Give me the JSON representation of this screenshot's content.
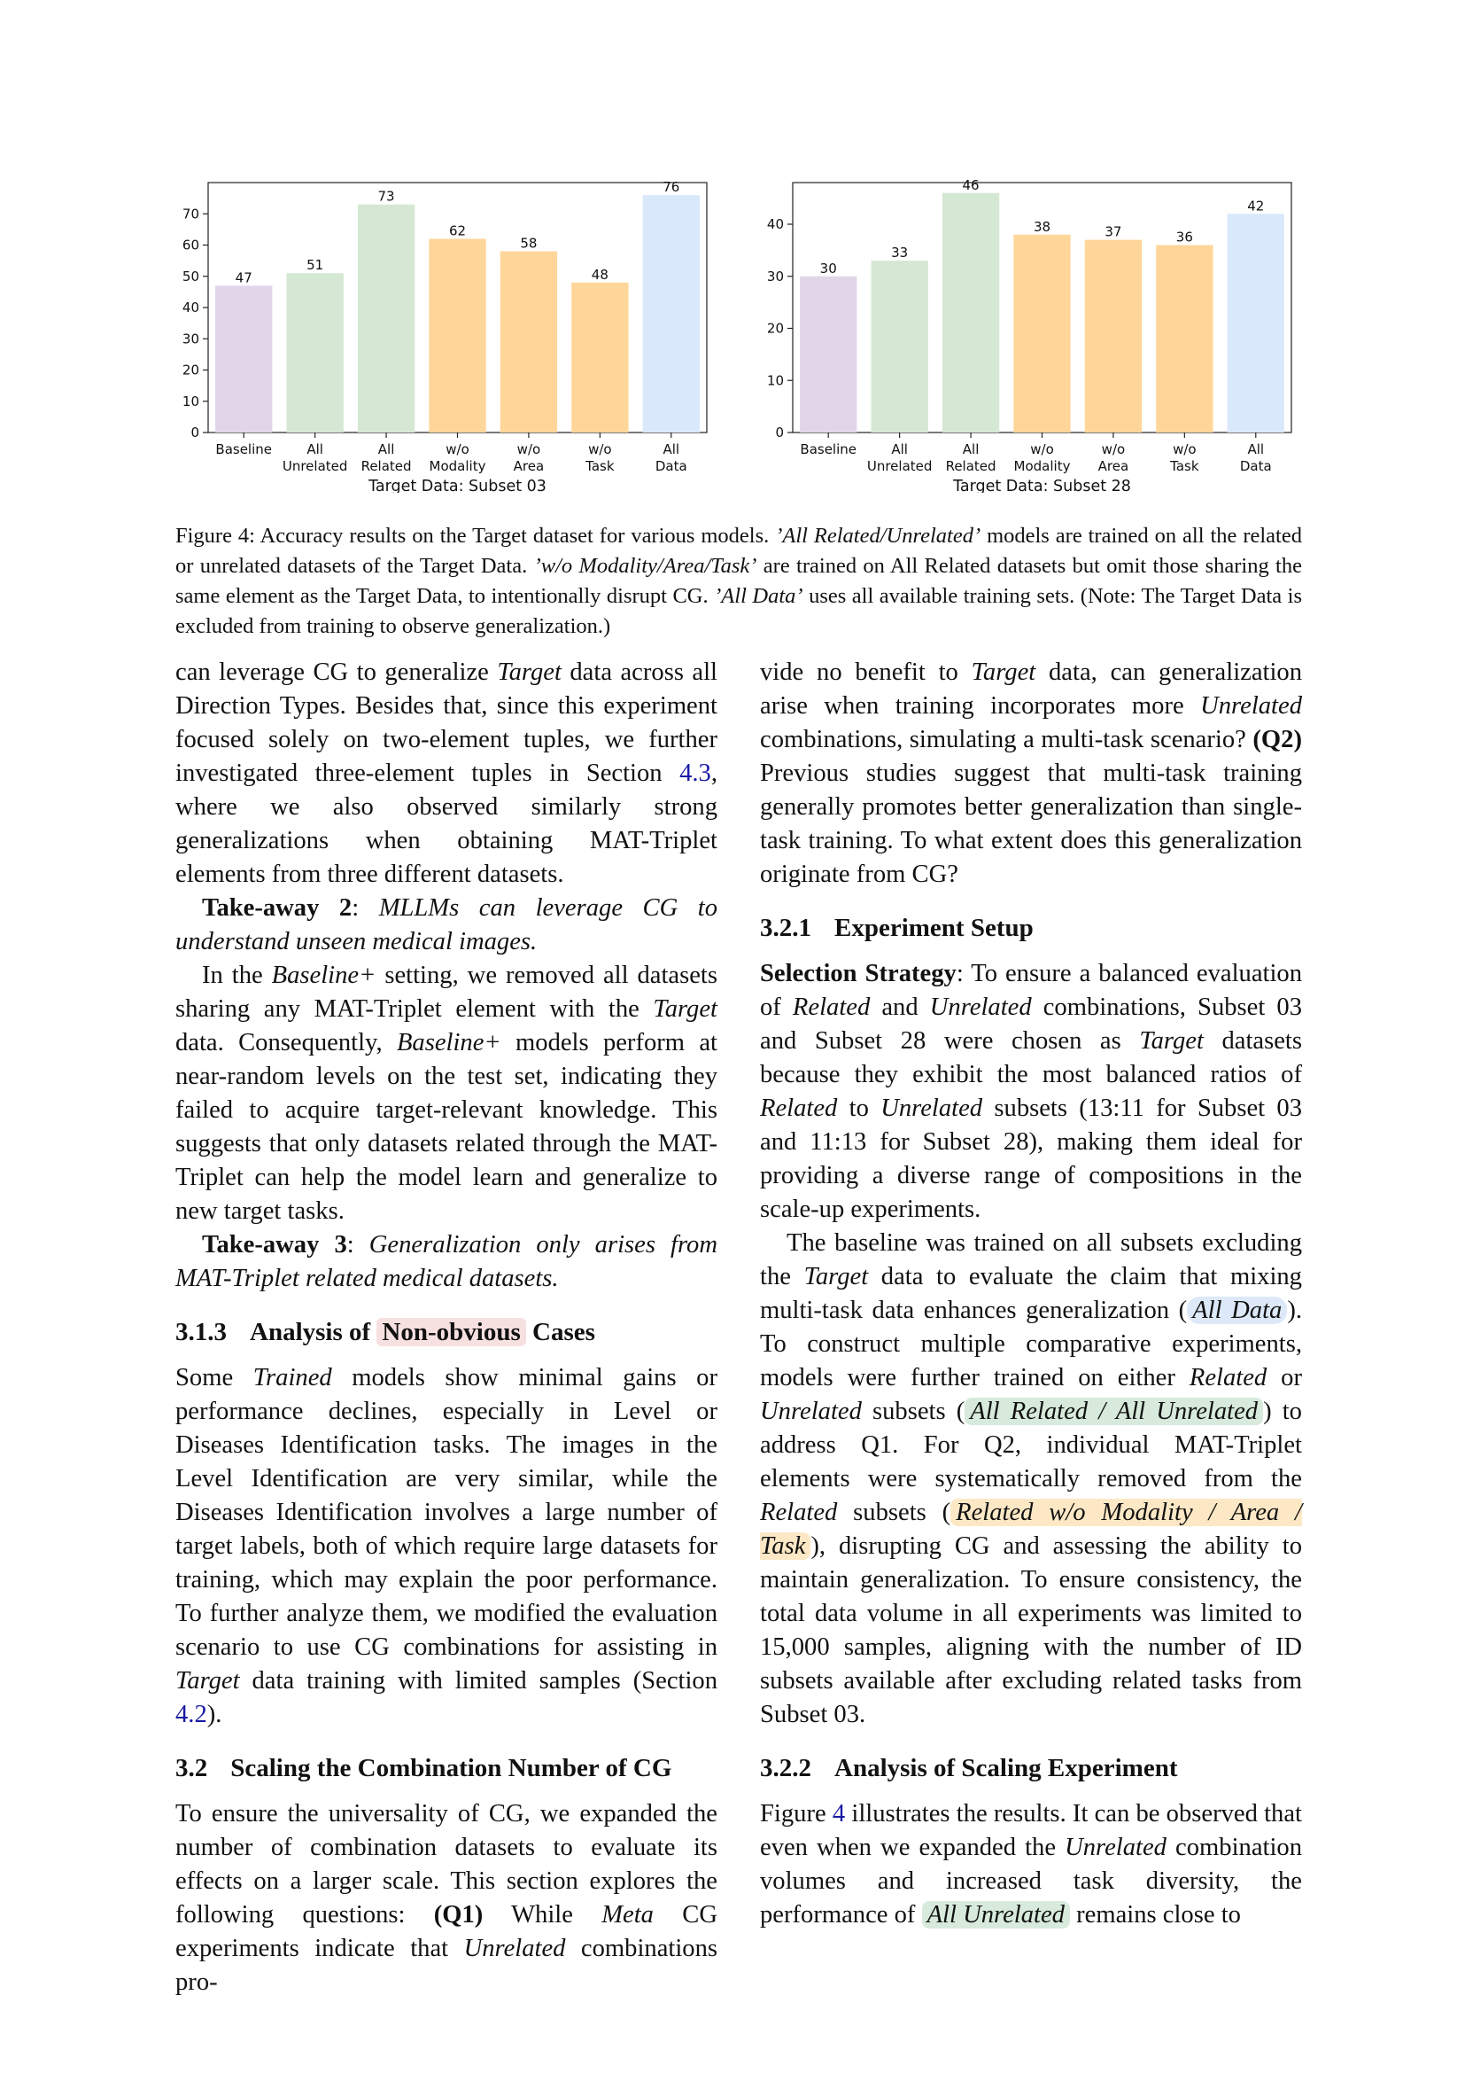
{
  "chart_data": [
    {
      "type": "bar",
      "categories": [
        [
          "Baseline"
        ],
        [
          "All",
          "Unrelated"
        ],
        [
          "All",
          "Related"
        ],
        [
          "w/o",
          "Modality"
        ],
        [
          "w/o",
          "Area"
        ],
        [
          "w/o",
          "Task"
        ],
        [
          "All",
          "Data"
        ]
      ],
      "values": [
        47,
        51,
        73,
        62,
        58,
        48,
        76
      ],
      "colors": [
        "#e1d5ea",
        "#d5e8d4",
        "#d5e8d4",
        "#ffd699",
        "#ffd699",
        "#ffd699",
        "#dae8fc"
      ],
      "xlabel": "Target Data: Subset 03",
      "ylim": [
        0,
        80
      ],
      "yticks": [
        0,
        10,
        20,
        30,
        40,
        50,
        60,
        70
      ]
    },
    {
      "type": "bar",
      "categories": [
        [
          "Baseline"
        ],
        [
          "All",
          "Unrelated"
        ],
        [
          "All",
          "Related"
        ],
        [
          "w/o",
          "Modality"
        ],
        [
          "w/o",
          "Area"
        ],
        [
          "w/o",
          "Task"
        ],
        [
          "All",
          "Data"
        ]
      ],
      "values": [
        30,
        33,
        46,
        38,
        37,
        36,
        42
      ],
      "colors": [
        "#e1d5ea",
        "#d5e8d4",
        "#d5e8d4",
        "#ffd699",
        "#ffd699",
        "#ffd699",
        "#dae8fc"
      ],
      "xlabel": "Target Data: Subset 28",
      "ylim": [
        0,
        48
      ],
      "yticks": [
        0,
        10,
        20,
        30,
        40
      ]
    }
  ],
  "caption": {
    "p1": "Figure 4: Accuracy results on the Target dataset for various models. ",
    "i1": "’All Related/Unrelated’",
    "p2": " models are trained on all the related or unrelated datasets of the Target Data. ",
    "i2": "’w/o Modality/Area/Task’",
    "p3": " are trained on All Related datasets but omit those sharing the same element as the Target Data, to intentionally disrupt CG. ",
    "i3": "’All Data’",
    "p4": " uses all available training sets. (Note: The Target Data is excluded from training to observe generalization.)"
  },
  "left": {
    "p1": {
      "a": "can leverage CG to generalize ",
      "b": "Target",
      "c": " data across all Direction Types. Besides that, since this experiment focused solely on two-element tuples, we further investigated three-element tuples in Section ",
      "link": "4.3",
      "d": ", where we also observed similarly strong generalizations when obtaining MAT-Triplet elements from three different datasets."
    },
    "t2": {
      "label": "Take-away 2",
      "colon": ": ",
      "text": "MLLMs can leverage CG to understand unseen medical images."
    },
    "p2": {
      "a": "In the ",
      "b": "Baseline+",
      "c": " setting, we removed all datasets sharing any MAT-Triplet element with the ",
      "d": "Target",
      "e": " data. Consequently, ",
      "f": "Baseline+",
      "g": " models perform at near-random levels on the test set, indicating they failed to acquire target-relevant knowledge. This suggests that only datasets related through the MAT-Triplet can help the model learn and generalize to new target tasks."
    },
    "t3": {
      "label": "Take-away 3",
      "colon": ": ",
      "text": "Generalization only arises from MAT-Triplet related medical datasets."
    },
    "h313": {
      "num": "3.1.3",
      "pre": "Analysis of ",
      "hl": "Non-obvious",
      "post": " Cases"
    },
    "p3": {
      "a": "Some ",
      "b": "Trained",
      "c": " models show minimal gains or performance declines, especially in Level or Diseases Identification tasks. The images in the Level Identification are very similar, while the Diseases Identification involves a large number of target labels, both of which require large datasets for training, which may explain the poor performance. To further analyze them, we modified the evaluation scenario to use CG combinations for assisting in ",
      "d": "Target",
      "e": " data training with limited samples (Section ",
      "link": "4.2",
      "f": ")."
    },
    "h32": {
      "num": "3.2",
      "text": "Scaling the Combination Number of CG"
    },
    "p4": {
      "a": "To ensure the universality of CG, we expanded the number of combination datasets to evaluate its effects on a larger scale. This section explores the following questions: ",
      "q1": "(Q1)",
      "b": " While ",
      "c": "Meta",
      "d": " CG experiments indicate that ",
      "e": "Unrelated",
      "f": " combinations pro-"
    }
  },
  "right": {
    "p1": {
      "a": "vide no benefit to ",
      "b": "Target",
      "c": " data, can generalization arise when training incorporates more ",
      "d": "Unrelated",
      "e": " combinations, simulating a multi-task scenario? ",
      "q2": "(Q2)",
      "f": " Previous studies suggest that multi-task training generally promotes better generalization than single-task training. To what extent does this generalization originate from CG?"
    },
    "h321": {
      "num": "3.2.1",
      "text": "Experiment Setup"
    },
    "p2": {
      "label": "Selection Strategy",
      "a": ": To ensure a balanced evaluation of ",
      "b": "Related",
      "c": " and ",
      "d": "Unrelated",
      "e": " combinations, Subset 03 and Subset 28 were chosen as ",
      "f": "Target",
      "g": " datasets because they exhibit the most balanced ratios of ",
      "h": "Related",
      "i": " to ",
      "j": "Unrelated",
      "k": " subsets (13:11 for Subset 03 and 11:13 for Subset 28), making them ideal for providing a diverse range of compositions in the scale-up experiments."
    },
    "p3": {
      "a": "The baseline was trained on all subsets excluding the ",
      "b": "Target",
      "c": " data to evaluate the claim that mixing multi-task data enhances generalization (",
      "hl1": "All Data",
      "d": "). To construct multiple comparative experiments, models were further trained on either ",
      "e": "Related",
      "f": " or ",
      "g": "Unrelated",
      "h": " subsets (",
      "hl2": "All Related / All Unrelated",
      "i": ") to address Q1. For Q2, individual MAT-Triplet elements were systematically removed from the ",
      "j": "Related",
      "k": " subsets (",
      "hl3": "Related w/o Modality / Area / Task",
      "l": "), disrupting CG and assessing the ability to maintain generalization. To ensure consistency, the total data volume in all experiments was limited to 15,000 samples, aligning with the number of ID subsets available after excluding related tasks from Subset 03."
    },
    "h322": {
      "num": "3.2.2",
      "text": "Analysis of Scaling Experiment"
    },
    "p4": {
      "a": "Figure ",
      "link": "4",
      "b": " illustrates the results. It can be observed that even when we expanded the ",
      "c": "Unrelated",
      "d": " combination volumes and increased task diversity, the performance of ",
      "hl": "All Unrelated",
      "e": " remains close to"
    }
  }
}
